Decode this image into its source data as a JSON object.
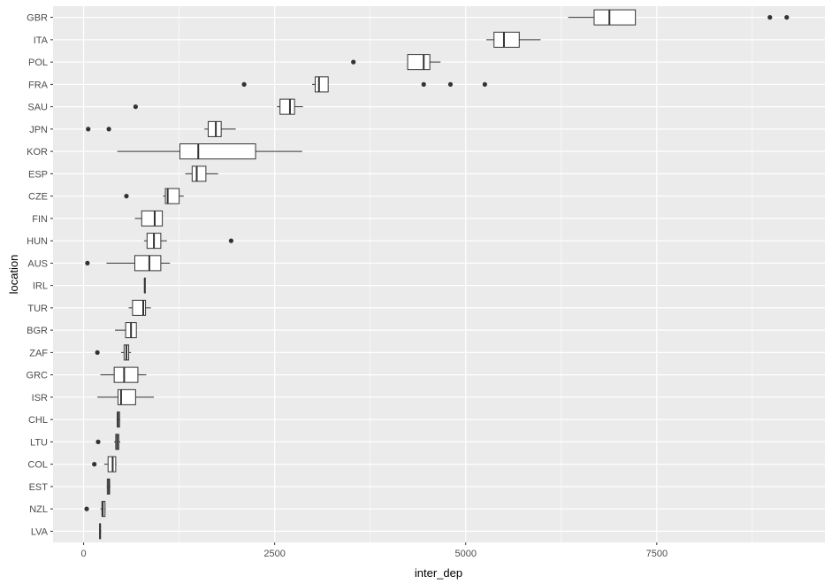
{
  "chart_data": {
    "type": "boxplot",
    "orientation": "horizontal",
    "xlabel": "inter_dep",
    "ylabel": "location",
    "xlim": [
      -400,
      9700
    ],
    "x_ticks": [
      0,
      2500,
      5000,
      7500
    ],
    "x_tick_labels": [
      "0",
      "2500",
      "5000",
      "7500"
    ],
    "grid": true,
    "colors": {
      "panel": "#ebebeb",
      "grid": "#ffffff",
      "box_fill": "#ffffff",
      "box_line": "#333333",
      "outlier": "#333333"
    },
    "categories": [
      "GBR",
      "ITA",
      "POL",
      "FRA",
      "SAU",
      "JPN",
      "KOR",
      "ESP",
      "CZE",
      "FIN",
      "HUN",
      "AUS",
      "IRL",
      "TUR",
      "BGR",
      "ZAF",
      "GRC",
      "ISR",
      "CHL",
      "LTU",
      "COL",
      "EST",
      "NZL",
      "LVA"
    ],
    "boxes": [
      {
        "location": "GBR",
        "whisker_low": 6340,
        "q1": 6680,
        "median": 6880,
        "q3": 7220,
        "whisker_high": 7220,
        "outliers": [
          8980,
          9200
        ]
      },
      {
        "location": "ITA",
        "whisker_low": 5270,
        "q1": 5370,
        "median": 5500,
        "q3": 5700,
        "whisker_high": 5980,
        "outliers": []
      },
      {
        "location": "POL",
        "whisker_low": 4240,
        "q1": 4240,
        "median": 4450,
        "q3": 4530,
        "whisker_high": 4670,
        "outliers": [
          3530
        ]
      },
      {
        "location": "FRA",
        "whisker_low": 2990,
        "q1": 3030,
        "median": 3080,
        "q3": 3200,
        "whisker_high": 3200,
        "outliers": [
          2100,
          4450,
          4800,
          5250
        ]
      },
      {
        "location": "SAU",
        "whisker_low": 2530,
        "q1": 2570,
        "median": 2700,
        "q3": 2760,
        "whisker_high": 2870,
        "outliers": [
          680
        ]
      },
      {
        "location": "JPN",
        "whisker_low": 1580,
        "q1": 1630,
        "median": 1730,
        "q3": 1800,
        "whisker_high": 1990,
        "outliers": [
          60,
          330
        ]
      },
      {
        "location": "KOR",
        "whisker_low": 440,
        "q1": 1260,
        "median": 1500,
        "q3": 2250,
        "whisker_high": 2860,
        "outliers": []
      },
      {
        "location": "ESP",
        "whisker_low": 1330,
        "q1": 1420,
        "median": 1480,
        "q3": 1600,
        "whisker_high": 1760,
        "outliers": []
      },
      {
        "location": "CZE",
        "whisker_low": 1040,
        "q1": 1070,
        "median": 1100,
        "q3": 1250,
        "whisker_high": 1310,
        "outliers": [
          560
        ]
      },
      {
        "location": "FIN",
        "whisker_low": 670,
        "q1": 760,
        "median": 930,
        "q3": 1030,
        "whisker_high": 1030,
        "outliers": []
      },
      {
        "location": "HUN",
        "whisker_low": 790,
        "q1": 830,
        "median": 920,
        "q3": 1010,
        "whisker_high": 1090,
        "outliers": [
          1930
        ]
      },
      {
        "location": "AUS",
        "whisker_low": 300,
        "q1": 670,
        "median": 860,
        "q3": 1010,
        "whisker_high": 1130,
        "outliers": [
          50
        ]
      },
      {
        "location": "IRL",
        "whisker_low": 800,
        "q1": 800,
        "median": 800,
        "q3": 800,
        "whisker_high": 800,
        "outliers": []
      },
      {
        "location": "TUR",
        "whisker_low": 590,
        "q1": 640,
        "median": 780,
        "q3": 810,
        "whisker_high": 880,
        "outliers": []
      },
      {
        "location": "BGR",
        "whisker_low": 410,
        "q1": 550,
        "median": 620,
        "q3": 690,
        "whisker_high": 690,
        "outliers": []
      },
      {
        "location": "ZAF",
        "whisker_low": 490,
        "q1": 530,
        "median": 560,
        "q3": 590,
        "whisker_high": 620,
        "outliers": [
          180
        ]
      },
      {
        "location": "GRC",
        "whisker_low": 220,
        "q1": 400,
        "median": 530,
        "q3": 710,
        "whisker_high": 820,
        "outliers": []
      },
      {
        "location": "ISR",
        "whisker_low": 180,
        "q1": 450,
        "median": 490,
        "q3": 680,
        "whisker_high": 920,
        "outliers": []
      },
      {
        "location": "CHL",
        "whisker_low": 430,
        "q1": 440,
        "median": 450,
        "q3": 470,
        "whisker_high": 480,
        "outliers": []
      },
      {
        "location": "LTU",
        "whisker_low": 400,
        "q1": 420,
        "median": 440,
        "q3": 460,
        "whisker_high": 480,
        "outliers": [
          190
        ]
      },
      {
        "location": "COL",
        "whisker_low": 270,
        "q1": 320,
        "median": 380,
        "q3": 420,
        "whisker_high": 430,
        "outliers": [
          140
        ]
      },
      {
        "location": "EST",
        "whisker_low": 300,
        "q1": 310,
        "median": 330,
        "q3": 340,
        "whisker_high": 350,
        "outliers": []
      },
      {
        "location": "NZL",
        "whisker_low": 220,
        "q1": 240,
        "median": 250,
        "q3": 280,
        "whisker_high": 290,
        "outliers": [
          40
        ]
      },
      {
        "location": "LVA",
        "whisker_low": 210,
        "q1": 210,
        "median": 215,
        "q3": 220,
        "whisker_high": 230,
        "outliers": []
      }
    ]
  }
}
